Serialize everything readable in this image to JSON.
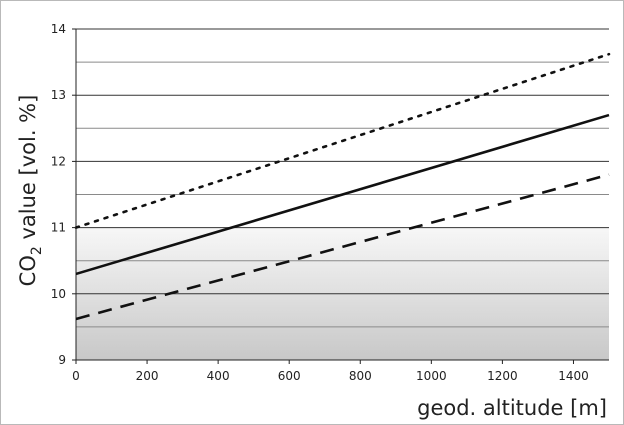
{
  "chart_data": {
    "type": "line",
    "title": "",
    "xlabel": "geod. altitude [m]",
    "ylabel": {
      "prefix": "CO",
      "subscript": "2",
      "suffix": " value [vol. %]"
    },
    "xlim": [
      0,
      1500
    ],
    "ylim": [
      9,
      14
    ],
    "xticks": [
      0,
      200,
      400,
      600,
      800,
      1000,
      1200,
      1400
    ],
    "yticks": [
      9,
      10,
      11,
      12,
      13,
      14
    ],
    "ygrid_major": [
      9,
      10,
      11,
      12,
      13,
      14
    ],
    "ygrid_minor": [
      9.5,
      10.5,
      11.5,
      12.5,
      13.5
    ],
    "shaded_band": [
      9,
      11
    ],
    "series": [
      {
        "style": "dotted",
        "x": [
          0,
          1500
        ],
        "y": [
          11.0,
          13.62
        ]
      },
      {
        "style": "solid",
        "x": [
          0,
          1500
        ],
        "y": [
          10.3,
          12.7
        ]
      },
      {
        "style": "dashed",
        "x": [
          0,
          1500
        ],
        "y": [
          9.62,
          11.8
        ]
      }
    ],
    "grid": true,
    "legend": "none"
  },
  "colors": {
    "line": "#111111",
    "grid_major": "#333333",
    "grid_minor": "#8a8a8a",
    "band_top": "#f7f7f7",
    "band_bottom": "#c8c8c8"
  }
}
